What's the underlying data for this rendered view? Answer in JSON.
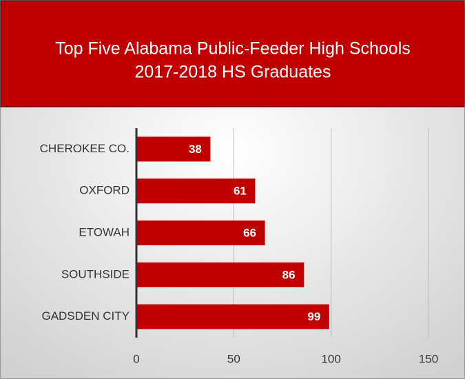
{
  "chart_data": {
    "type": "bar",
    "orientation": "horizontal",
    "title": "Top Five Alabama Public-Feeder High Schools",
    "subtitle": "2017-2018 HS Graduates",
    "categories": [
      "CHEROKEE CO.",
      "OXFORD",
      "ETOWAH",
      "SOUTHSIDE",
      "GADSDEN CITY"
    ],
    "values": [
      38,
      61,
      66,
      86,
      99
    ],
    "color": "#c00000",
    "xlim": [
      0,
      150
    ],
    "xticks": [
      0,
      50,
      100,
      150
    ],
    "grid": true
  }
}
